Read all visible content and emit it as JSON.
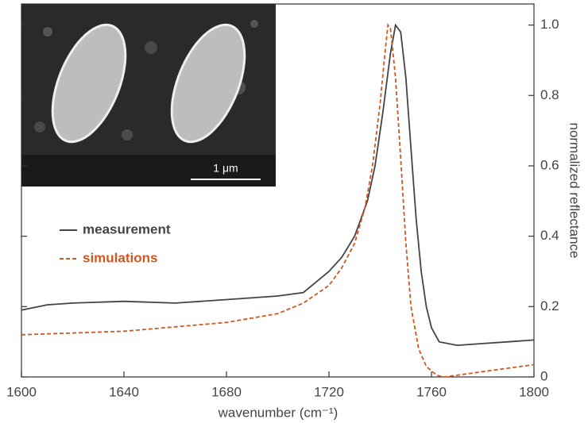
{
  "chart_data": {
    "type": "line",
    "xlabel": "wavenumber (cm⁻¹)",
    "ylabel": "normalized reflectance",
    "annotations": [
      "1 μm"
    ],
    "xlim": [
      1600,
      1800
    ],
    "xticks": [
      1600,
      1640,
      1680,
      1720,
      1760,
      1800
    ],
    "ylim": [
      0,
      1.06
    ],
    "yticks": [
      0,
      0.2,
      0.4,
      0.6,
      0.8,
      {
        "value": 1,
        "label": "1.0"
      }
    ],
    "yaxis_side": "right",
    "legend": "center-left",
    "series": [
      {
        "name": "measurement",
        "color": "#444444",
        "dash": "solid",
        "x": [
          1600,
          1610,
          1620,
          1640,
          1660,
          1680,
          1700,
          1710,
          1715,
          1720,
          1725,
          1730,
          1735,
          1738,
          1741,
          1744,
          1746,
          1748,
          1750,
          1752,
          1754,
          1756,
          1758,
          1760,
          1763,
          1770,
          1780,
          1790,
          1800
        ],
        "values": [
          0.19,
          0.205,
          0.21,
          0.215,
          0.21,
          0.22,
          0.23,
          0.24,
          0.27,
          0.3,
          0.34,
          0.4,
          0.5,
          0.6,
          0.75,
          0.92,
          1.0,
          0.98,
          0.85,
          0.65,
          0.45,
          0.3,
          0.2,
          0.14,
          0.1,
          0.09,
          0.095,
          0.1,
          0.105
        ]
      },
      {
        "name": "simulations",
        "color": "#d2561e",
        "dash": "dashed",
        "x": [
          1600,
          1640,
          1680,
          1700,
          1710,
          1720,
          1725,
          1730,
          1734,
          1737,
          1740,
          1742,
          1743,
          1744,
          1746,
          1748,
          1750,
          1752,
          1755,
          1758,
          1762,
          1765,
          1770,
          1780,
          1790,
          1800
        ],
        "values": [
          0.12,
          0.13,
          0.155,
          0.18,
          0.21,
          0.26,
          0.31,
          0.38,
          0.48,
          0.6,
          0.78,
          0.93,
          1.0,
          0.99,
          0.85,
          0.62,
          0.38,
          0.2,
          0.08,
          0.03,
          0.005,
          0.0,
          0.005,
          0.015,
          0.025,
          0.035
        ]
      }
    ]
  }
}
